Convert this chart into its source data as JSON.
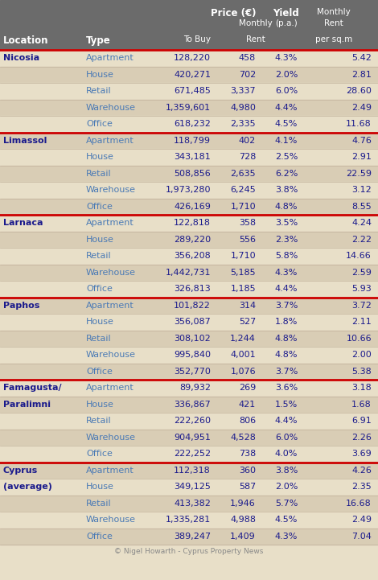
{
  "title_bg": "#6b6b6b",
  "header_text_color": "#ffffff",
  "bg_color": "#e8dfc8",
  "alt_row_color": "#d9cdb5",
  "location_color": "#1a1a8c",
  "type_color": "#4a7ab5",
  "data_color": "#1a1a8c",
  "separator_color": "#cc0000",
  "footer_text": "© Nigel Howarth - Cyprus Property News",
  "footer_color": "#888888",
  "rows": [
    {
      "location": "Nicosia",
      "type": "Apartment",
      "to_buy": "128,220",
      "monthly_rent": "458",
      "yield": "4.3%",
      "rent_sqm": "5.42",
      "first_in_group": true
    },
    {
      "location": "",
      "type": "House",
      "to_buy": "420,271",
      "monthly_rent": "702",
      "yield": "2.0%",
      "rent_sqm": "2.81",
      "first_in_group": false
    },
    {
      "location": "",
      "type": "Retail",
      "to_buy": "671,485",
      "monthly_rent": "3,337",
      "yield": "6.0%",
      "rent_sqm": "28.60",
      "first_in_group": false
    },
    {
      "location": "",
      "type": "Warehouse",
      "to_buy": "1,359,601",
      "monthly_rent": "4,980",
      "yield": "4.4%",
      "rent_sqm": "2.49",
      "first_in_group": false
    },
    {
      "location": "",
      "type": "Office",
      "to_buy": "618,232",
      "monthly_rent": "2,335",
      "yield": "4.5%",
      "rent_sqm": "11.68",
      "first_in_group": false
    },
    {
      "location": "Limassol",
      "type": "Apartment",
      "to_buy": "118,799",
      "monthly_rent": "402",
      "yield": "4.1%",
      "rent_sqm": "4.76",
      "first_in_group": true
    },
    {
      "location": "",
      "type": "House",
      "to_buy": "343,181",
      "monthly_rent": "728",
      "yield": "2.5%",
      "rent_sqm": "2.91",
      "first_in_group": false
    },
    {
      "location": "",
      "type": "Retail",
      "to_buy": "508,856",
      "monthly_rent": "2,635",
      "yield": "6.2%",
      "rent_sqm": "22.59",
      "first_in_group": false
    },
    {
      "location": "",
      "type": "Warehouse",
      "to_buy": "1,973,280",
      "monthly_rent": "6,245",
      "yield": "3.8%",
      "rent_sqm": "3.12",
      "first_in_group": false
    },
    {
      "location": "",
      "type": "Office",
      "to_buy": "426,169",
      "monthly_rent": "1,710",
      "yield": "4.8%",
      "rent_sqm": "8.55",
      "first_in_group": false
    },
    {
      "location": "Larnaca",
      "type": "Apartment",
      "to_buy": "122,818",
      "monthly_rent": "358",
      "yield": "3.5%",
      "rent_sqm": "4.24",
      "first_in_group": true
    },
    {
      "location": "",
      "type": "House",
      "to_buy": "289,220",
      "monthly_rent": "556",
      "yield": "2.3%",
      "rent_sqm": "2.22",
      "first_in_group": false
    },
    {
      "location": "",
      "type": "Retail",
      "to_buy": "356,208",
      "monthly_rent": "1,710",
      "yield": "5.8%",
      "rent_sqm": "14.66",
      "first_in_group": false
    },
    {
      "location": "",
      "type": "Warehouse",
      "to_buy": "1,442,731",
      "monthly_rent": "5,185",
      "yield": "4.3%",
      "rent_sqm": "2.59",
      "first_in_group": false
    },
    {
      "location": "",
      "type": "Office",
      "to_buy": "326,813",
      "monthly_rent": "1,185",
      "yield": "4.4%",
      "rent_sqm": "5.93",
      "first_in_group": false
    },
    {
      "location": "Paphos",
      "type": "Apartment",
      "to_buy": "101,822",
      "monthly_rent": "314",
      "yield": "3.7%",
      "rent_sqm": "3.72",
      "first_in_group": true
    },
    {
      "location": "",
      "type": "House",
      "to_buy": "356,087",
      "monthly_rent": "527",
      "yield": "1.8%",
      "rent_sqm": "2.11",
      "first_in_group": false
    },
    {
      "location": "",
      "type": "Retail",
      "to_buy": "308,102",
      "monthly_rent": "1,244",
      "yield": "4.8%",
      "rent_sqm": "10.66",
      "first_in_group": false
    },
    {
      "location": "",
      "type": "Warehouse",
      "to_buy": "995,840",
      "monthly_rent": "4,001",
      "yield": "4.8%",
      "rent_sqm": "2.00",
      "first_in_group": false
    },
    {
      "location": "",
      "type": "Office",
      "to_buy": "352,770",
      "monthly_rent": "1,076",
      "yield": "3.7%",
      "rent_sqm": "5.38",
      "first_in_group": false
    },
    {
      "location": "Famagusta/",
      "type": "Apartment",
      "to_buy": "89,932",
      "monthly_rent": "269",
      "yield": "3.6%",
      "rent_sqm": "3.18",
      "first_in_group": true
    },
    {
      "location": "Paralimni",
      "type": "House",
      "to_buy": "336,867",
      "monthly_rent": "421",
      "yield": "1.5%",
      "rent_sqm": "1.68",
      "first_in_group": false
    },
    {
      "location": "",
      "type": "Retail",
      "to_buy": "222,260",
      "monthly_rent": "806",
      "yield": "4.4%",
      "rent_sqm": "6.91",
      "first_in_group": false
    },
    {
      "location": "",
      "type": "Warehouse",
      "to_buy": "904,951",
      "monthly_rent": "4,528",
      "yield": "6.0%",
      "rent_sqm": "2.26",
      "first_in_group": false
    },
    {
      "location": "",
      "type": "Office",
      "to_buy": "222,252",
      "monthly_rent": "738",
      "yield": "4.0%",
      "rent_sqm": "3.69",
      "first_in_group": false
    },
    {
      "location": "Cyprus",
      "type": "Apartment",
      "to_buy": "112,318",
      "monthly_rent": "360",
      "yield": "3.8%",
      "rent_sqm": "4.26",
      "first_in_group": true
    },
    {
      "location": "(average)",
      "type": "House",
      "to_buy": "349,125",
      "monthly_rent": "587",
      "yield": "2.0%",
      "rent_sqm": "2.35",
      "first_in_group": false
    },
    {
      "location": "",
      "type": "Retail",
      "to_buy": "413,382",
      "monthly_rent": "1,946",
      "yield": "5.7%",
      "rent_sqm": "16.68",
      "first_in_group": false
    },
    {
      "location": "",
      "type": "Warehouse",
      "to_buy": "1,335,281",
      "monthly_rent": "4,988",
      "yield": "4.5%",
      "rent_sqm": "2.49",
      "first_in_group": false
    },
    {
      "location": "",
      "type": "Office",
      "to_buy": "389,247",
      "monthly_rent": "1,409",
      "yield": "4.3%",
      "rent_sqm": "7.04",
      "first_in_group": false
    }
  ]
}
